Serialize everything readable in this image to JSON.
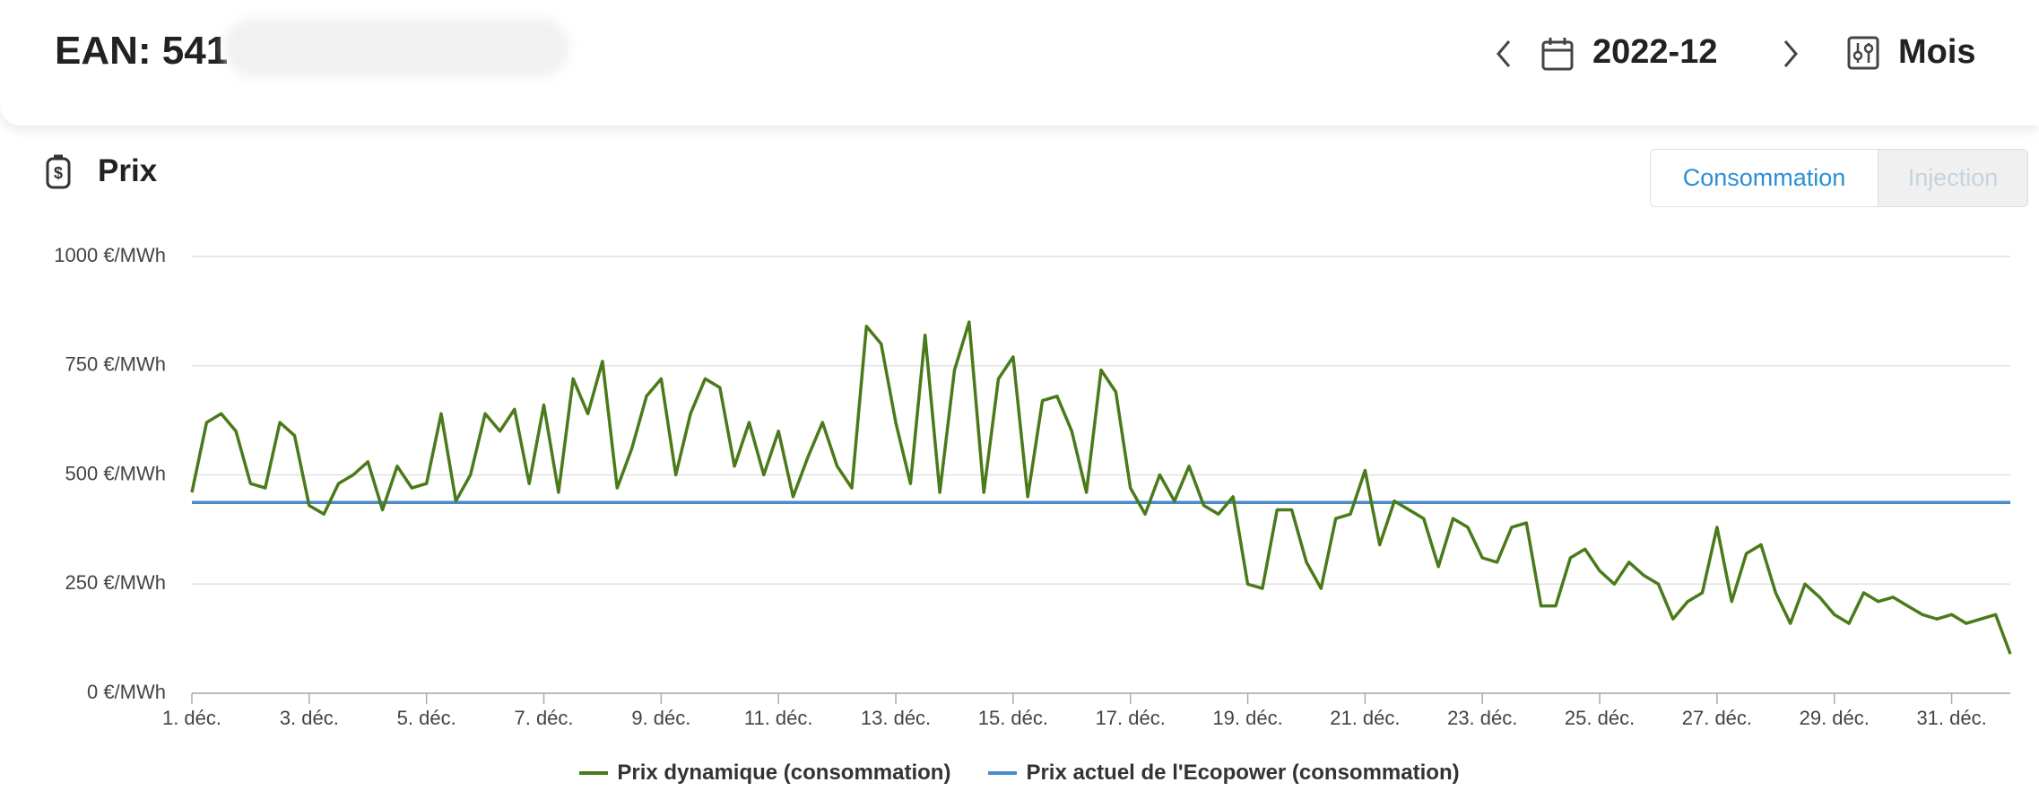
{
  "header": {
    "ean": "EAN: 541",
    "period": "2022-12",
    "view": "Mois"
  },
  "section": {
    "title": "Prix",
    "tabs": [
      "Consommation",
      "Injection"
    ]
  },
  "chart_data": {
    "type": "line",
    "x": [
      1,
      1.25,
      1.5,
      1.75,
      2,
      2.25,
      2.5,
      2.75,
      3,
      3.25,
      3.5,
      3.75,
      4,
      4.25,
      4.5,
      4.75,
      5,
      5.25,
      5.5,
      5.75,
      6,
      6.25,
      6.5,
      6.75,
      7,
      7.25,
      7.5,
      7.75,
      8,
      8.25,
      8.5,
      8.75,
      9,
      9.25,
      9.5,
      9.75,
      10,
      10.25,
      10.5,
      10.75,
      11,
      11.25,
      11.5,
      11.75,
      12,
      12.25,
      12.5,
      12.75,
      13,
      13.25,
      13.5,
      13.75,
      14,
      14.25,
      14.5,
      14.75,
      15,
      15.25,
      15.5,
      15.75,
      16,
      16.25,
      16.5,
      16.75,
      17,
      17.25,
      17.5,
      17.75,
      18,
      18.25,
      18.5,
      18.75,
      19,
      19.25,
      19.5,
      19.75,
      20,
      20.25,
      20.5,
      20.75,
      21,
      21.25,
      21.5,
      21.75,
      22,
      22.25,
      22.5,
      22.75,
      23,
      23.25,
      23.5,
      23.75,
      24,
      24.25,
      24.5,
      24.75,
      25,
      25.25,
      25.5,
      25.75,
      26,
      26.25,
      26.5,
      26.75,
      27,
      27.25,
      27.5,
      27.75,
      28,
      28.25,
      28.5,
      28.75,
      29,
      29.25,
      29.5,
      29.75,
      30,
      30.25,
      30.5,
      30.75,
      31,
      31.25,
      31.5,
      31.75,
      32
    ],
    "series": [
      {
        "name": "Prix dynamique (consommation)",
        "color": "#4a7a1a",
        "values": [
          460,
          620,
          640,
          600,
          480,
          470,
          620,
          590,
          430,
          410,
          480,
          500,
          530,
          420,
          520,
          470,
          480,
          640,
          440,
          500,
          640,
          600,
          650,
          480,
          660,
          460,
          720,
          640,
          760,
          470,
          560,
          680,
          720,
          500,
          640,
          720,
          700,
          520,
          620,
          500,
          600,
          450,
          540,
          620,
          520,
          470,
          840,
          800,
          620,
          480,
          820,
          460,
          740,
          850,
          460,
          720,
          770,
          450,
          670,
          680,
          600,
          460,
          740,
          690,
          470,
          410,
          500,
          440,
          520,
          430,
          410,
          450,
          250,
          240,
          420,
          420,
          300,
          240,
          400,
          410,
          510,
          340,
          440,
          420,
          400,
          290,
          400,
          380,
          310,
          300,
          380,
          390,
          200,
          200,
          310,
          330,
          280,
          250,
          300,
          270,
          250,
          170,
          210,
          230,
          380,
          210,
          320,
          340,
          230,
          160,
          250,
          220,
          180,
          160,
          230,
          210,
          220,
          200,
          180,
          170,
          180,
          160,
          170,
          180,
          90
        ]
      },
      {
        "name": "Prix actuel de l'Ecopower (consommation)",
        "color": "#4a8ac9",
        "values": [
          437,
          437,
          437,
          437,
          437,
          437,
          437,
          437,
          437,
          437,
          437,
          437,
          437,
          437,
          437,
          437,
          437,
          437,
          437,
          437,
          437,
          437,
          437,
          437,
          437,
          437,
          437,
          437,
          437,
          437,
          437,
          437,
          437,
          437,
          437,
          437,
          437,
          437,
          437,
          437,
          437,
          437,
          437,
          437,
          437,
          437,
          437,
          437,
          437,
          437,
          437,
          437,
          437,
          437,
          437,
          437,
          437,
          437,
          437,
          437,
          437,
          437,
          437,
          437,
          437,
          437,
          437,
          437,
          437,
          437,
          437,
          437,
          437,
          437,
          437,
          437,
          437,
          437,
          437,
          437,
          437,
          437,
          437,
          437,
          437,
          437,
          437,
          437,
          437,
          437,
          437,
          437,
          437,
          437,
          437,
          437,
          437,
          437,
          437,
          437,
          437,
          437,
          437,
          437,
          437,
          437,
          437,
          437,
          437,
          437,
          437,
          437,
          437,
          437,
          437,
          437,
          437,
          437,
          437,
          437,
          437,
          437,
          437,
          437,
          437
        ]
      }
    ],
    "xlim": [
      1,
      32
    ],
    "xticks": [
      {
        "value": 1,
        "label": "1. déc."
      },
      {
        "value": 3,
        "label": "3. déc."
      },
      {
        "value": 5,
        "label": "5. déc."
      },
      {
        "value": 7,
        "label": "7. déc."
      },
      {
        "value": 9,
        "label": "9. déc."
      },
      {
        "value": 11,
        "label": "11. déc."
      },
      {
        "value": 13,
        "label": "13. déc."
      },
      {
        "value": 15,
        "label": "15. déc."
      },
      {
        "value": 17,
        "label": "17. déc."
      },
      {
        "value": 19,
        "label": "19. déc."
      },
      {
        "value": 21,
        "label": "21. déc."
      },
      {
        "value": 23,
        "label": "23. déc."
      },
      {
        "value": 25,
        "label": "25. déc."
      },
      {
        "value": 27,
        "label": "27. déc."
      },
      {
        "value": 29,
        "label": "29. déc."
      },
      {
        "value": 31,
        "label": "31. déc."
      }
    ],
    "ylim": [
      0,
      1000
    ],
    "yticks": [
      {
        "value": 0,
        "label": "0 €/MWh"
      },
      {
        "value": 250,
        "label": "250 €/MWh"
      },
      {
        "value": 500,
        "label": "500 €/MWh"
      },
      {
        "value": 750,
        "label": "750 €/MWh"
      },
      {
        "value": 1000,
        "label": "1000 €/MWh"
      }
    ],
    "grid": true
  }
}
